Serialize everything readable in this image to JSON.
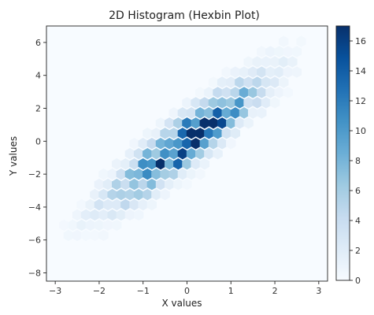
{
  "chart_data": {
    "type": "heatmap",
    "subtype": "hexbin",
    "title": "2D Histogram (Hexbin Plot)",
    "xlabel": "X values",
    "ylabel": "Y values",
    "xlim": [
      -3.2,
      3.2
    ],
    "ylim": [
      -8.5,
      7.0
    ],
    "xticks": [
      -3,
      -2,
      -1,
      0,
      1,
      2,
      3
    ],
    "yticks": [
      -8,
      -6,
      -4,
      -2,
      0,
      2,
      4,
      6
    ],
    "grid": false,
    "colormap": "Blues",
    "colorbar": {
      "min": 0,
      "max": 17,
      "ticks": [
        0,
        2,
        4,
        6,
        8,
        10,
        12,
        14,
        16
      ]
    },
    "colors": {
      "low": "#f7fbff",
      "high": "#08306b"
    },
    "distribution": {
      "description_only_for_rendering": false,
      "center": [
        0,
        0
      ],
      "slope": 2,
      "spread_along": 1.0,
      "spread_across": 0.95,
      "peak_count": 17
    }
  }
}
